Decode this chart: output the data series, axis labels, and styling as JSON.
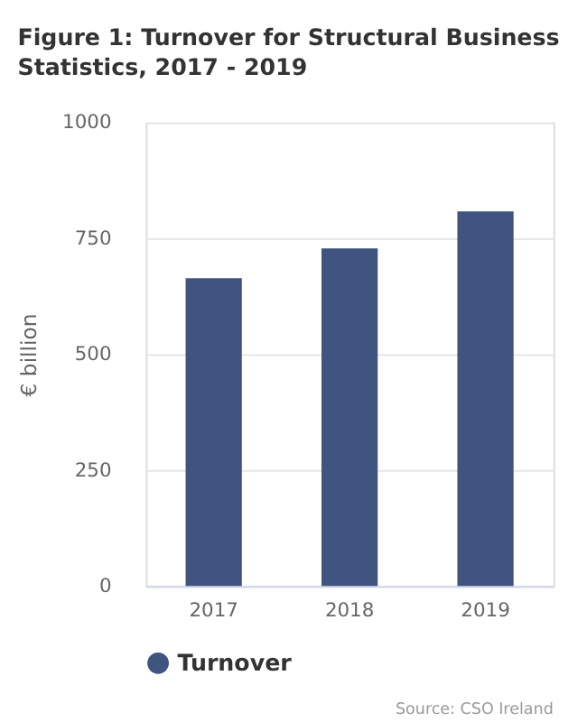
{
  "chart_data": {
    "type": "bar",
    "title": "Figure 1: Turnover for Structural Business Statistics, 2017 - 2019",
    "ylabel": "€ billion",
    "categories": [
      "2017",
      "2018",
      "2019"
    ],
    "series": [
      {
        "name": "Turnover",
        "color": "#3f547f",
        "values": [
          664,
          728,
          808
        ]
      }
    ],
    "ylim": [
      0,
      1000
    ],
    "yticks": [
      0,
      250,
      500,
      750,
      1000
    ],
    "grid": "y",
    "legend": "bottom",
    "annotations": [
      "Source: CSO Ireland"
    ]
  }
}
